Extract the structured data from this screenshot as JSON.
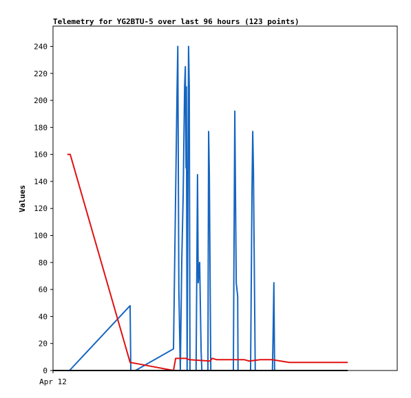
{
  "chart_data": {
    "type": "line",
    "title": "Telemetry for YG2BTU-5 over last 96 hours (123 points)",
    "y_label": "Values",
    "xlim": [
      0,
      96
    ],
    "xticks": [
      {
        "value": 0,
        "label": "Apr 12"
      }
    ],
    "ylim": [
      0,
      255
    ],
    "yticks": [
      0,
      20,
      40,
      60,
      80,
      100,
      120,
      140,
      160,
      180,
      200,
      220,
      240
    ],
    "series": [
      {
        "color": "#1565c0",
        "x": [
          4.6,
          21.5,
          21.7,
          23.0,
          33.6,
          34.6,
          34.8,
          34.9,
          35.1,
          35.5,
          35.9,
          36.3,
          36.7,
          36.9,
          37.1,
          37.2,
          37.4,
          37.8,
          38.0,
          38.2,
          39.9,
          40.1,
          40.3,
          40.5,
          40.9,
          41.3,
          41.5,
          43.2,
          43.4,
          43.6,
          44.0,
          50.3,
          50.5,
          50.7,
          50.9,
          51.1,
          51.5,
          51.6,
          55.1,
          55.5,
          55.7,
          55.9,
          56.1,
          56.4,
          61.2,
          61.4,
          61.6,
          61.8
        ],
        "values": [
          0,
          48,
          0,
          0,
          16,
          208,
          240,
          180,
          60,
          0,
          80,
          130,
          210,
          225,
          150,
          210,
          0,
          240,
          210,
          0,
          0,
          72,
          145,
          65,
          80,
          15,
          0,
          0,
          177,
          145,
          0,
          0,
          100,
          192,
          128,
          65,
          55,
          0,
          0,
          135,
          177,
          148,
          88,
          0,
          0,
          30,
          65,
          0
        ]
      },
      {
        "color": "#e01010",
        "x": [
          4.0,
          4.8,
          21.5,
          23.6,
          33.6,
          34.2,
          37.1,
          38.0,
          43.8,
          44.4,
          45.7,
          53.4,
          54.7,
          57.8,
          61.1,
          65.9,
          82.2
        ],
        "values": [
          160,
          160,
          6,
          5,
          0,
          9,
          9,
          8,
          7,
          9,
          8,
          8,
          7,
          8,
          8,
          6,
          6
        ]
      },
      {
        "color": "#000000",
        "x": [
          0,
          82.2
        ],
        "values": [
          0,
          0
        ]
      }
    ]
  }
}
